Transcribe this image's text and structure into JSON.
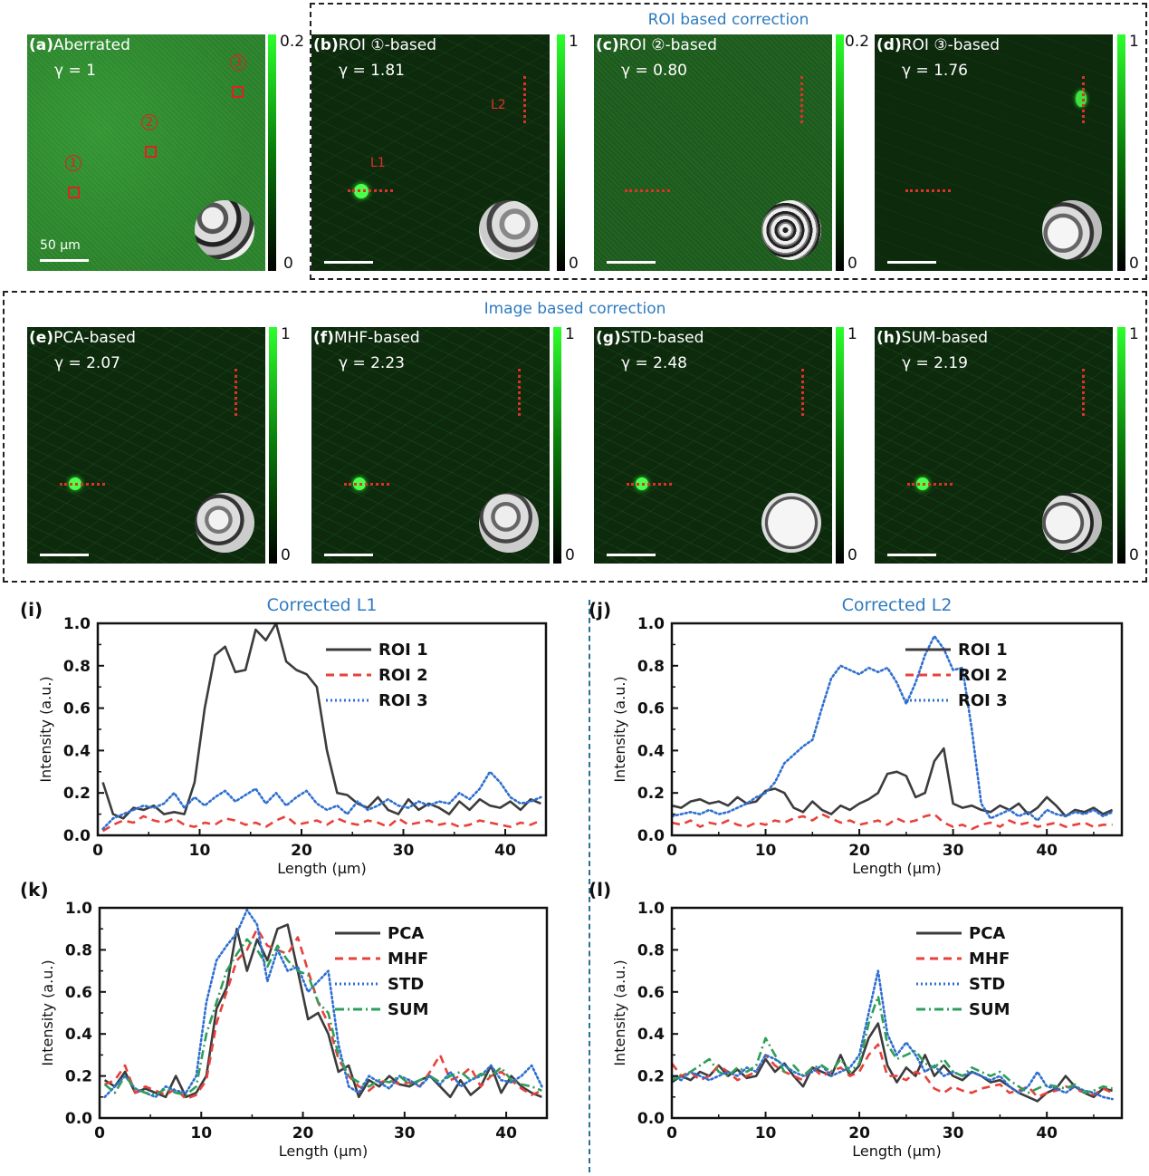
{
  "group_titles": {
    "roi": "ROI based correction",
    "image": "Image based correction"
  },
  "panels": {
    "a": {
      "letter": "(a)",
      "name": "Aberrated",
      "gamma": "γ = 1",
      "cmax": "0.2",
      "cmin": "0",
      "scale": "50 μm",
      "roi1": "1",
      "roi2": "2",
      "roi3": "3"
    },
    "b": {
      "letter": "(b)",
      "name": "ROI ①-based",
      "gamma": "γ = 1.81",
      "cmax": "1",
      "cmin": "0",
      "l1": "L1",
      "l2": "L2"
    },
    "c": {
      "letter": "(c)",
      "name": "ROI ②-based",
      "gamma": "γ = 0.80",
      "cmax": "0.2",
      "cmin": "0"
    },
    "d": {
      "letter": "(d)",
      "name": "ROI ③-based",
      "gamma": "γ = 1.76",
      "cmax": "1",
      "cmin": "0"
    },
    "e": {
      "letter": "(e)",
      "name": "PCA-based",
      "gamma": "γ =  2.07",
      "cmax": "1",
      "cmin": "0"
    },
    "f": {
      "letter": "(f)",
      "name": "MHF-based",
      "gamma": "γ = 2.23",
      "cmax": "1",
      "cmin": "0"
    },
    "g": {
      "letter": "(g)",
      "name": "STD-based",
      "gamma": "γ = 2.48",
      "cmax": "1",
      "cmin": "0"
    },
    "h": {
      "letter": "(h)",
      "name": "SUM-based",
      "gamma": "γ = 2.19",
      "cmax": "1",
      "cmin": "0"
    }
  },
  "colors": {
    "roi1": "#3c3c3c",
    "roi2": "#e8413b",
    "roi3": "#2f6fd0",
    "pca": "#3c3c3c",
    "mhf": "#e8413b",
    "std": "#2f6fd0",
    "sum": "#2e9e5a"
  },
  "chart_data": [
    {
      "id": "i",
      "letter": "(i)",
      "type": "line",
      "title": "Corrected L1",
      "xlabel": "Length (μm)",
      "ylabel": "Intensity  (a.u.)",
      "xlim": [
        0,
        44
      ],
      "ylim": [
        0,
        1.0
      ],
      "xticks": [
        0,
        10,
        20,
        30,
        40
      ],
      "yticks": [
        0.0,
        0.2,
        0.4,
        0.6,
        0.8,
        1.0
      ],
      "x": [
        0.5,
        1.5,
        2.5,
        3.5,
        4.5,
        5.5,
        6.5,
        7.5,
        8.5,
        9.5,
        10.5,
        11.5,
        12.5,
        13.5,
        14.5,
        15.5,
        16.5,
        17.5,
        18.5,
        19.5,
        20.5,
        21.5,
        22.5,
        23.5,
        24.5,
        25.5,
        26.5,
        27.5,
        28.5,
        29.5,
        30.5,
        31.5,
        32.5,
        33.5,
        34.5,
        35.5,
        36.5,
        37.5,
        38.5,
        39.5,
        40.5,
        41.5,
        42.5,
        43.5
      ],
      "series": [
        {
          "name": "ROI 1",
          "style": "solid",
          "values": [
            0.25,
            0.1,
            0.08,
            0.13,
            0.12,
            0.14,
            0.1,
            0.11,
            0.1,
            0.25,
            0.6,
            0.85,
            0.89,
            0.77,
            0.78,
            0.97,
            0.92,
            1.0,
            0.82,
            0.78,
            0.76,
            0.7,
            0.4,
            0.2,
            0.19,
            0.15,
            0.13,
            0.18,
            0.12,
            0.1,
            0.17,
            0.12,
            0.15,
            0.13,
            0.1,
            0.16,
            0.12,
            0.17,
            0.14,
            0.13,
            0.16,
            0.12,
            0.17,
            0.15
          ]
        },
        {
          "name": "ROI 2",
          "style": "dashed",
          "values": [
            0.02,
            0.05,
            0.07,
            0.06,
            0.09,
            0.07,
            0.06,
            0.08,
            0.05,
            0.04,
            0.06,
            0.05,
            0.08,
            0.07,
            0.05,
            0.06,
            0.04,
            0.07,
            0.09,
            0.05,
            0.06,
            0.07,
            0.05,
            0.08,
            0.06,
            0.05,
            0.07,
            0.06,
            0.04,
            0.08,
            0.05,
            0.06,
            0.07,
            0.05,
            0.06,
            0.04,
            0.05,
            0.07,
            0.06,
            0.05,
            0.04,
            0.06,
            0.05,
            0.07
          ]
        },
        {
          "name": "ROI 3",
          "style": "dotted",
          "values": [
            0.03,
            0.08,
            0.1,
            0.12,
            0.14,
            0.13,
            0.15,
            0.2,
            0.13,
            0.18,
            0.14,
            0.18,
            0.21,
            0.16,
            0.19,
            0.22,
            0.15,
            0.2,
            0.14,
            0.18,
            0.21,
            0.15,
            0.12,
            0.14,
            0.1,
            0.16,
            0.12,
            0.14,
            0.17,
            0.14,
            0.13,
            0.16,
            0.14,
            0.16,
            0.15,
            0.2,
            0.17,
            0.22,
            0.3,
            0.25,
            0.18,
            0.15,
            0.16,
            0.18
          ]
        }
      ]
    },
    {
      "id": "j",
      "letter": "(j)",
      "type": "line",
      "title": "Corrected L2",
      "xlabel": "Length (μm)",
      "ylabel": "Intensity  (a.u.)",
      "xlim": [
        0,
        48
      ],
      "ylim": [
        0,
        1.0
      ],
      "xticks": [
        0,
        10,
        20,
        30,
        40
      ],
      "yticks": [
        0.0,
        0.2,
        0.4,
        0.6,
        0.8,
        1.0
      ],
      "x": [
        0,
        1,
        2,
        3,
        4,
        5,
        6,
        7,
        8,
        9,
        10,
        11,
        12,
        13,
        14,
        15,
        16,
        17,
        18,
        19,
        20,
        21,
        22,
        23,
        24,
        25,
        26,
        27,
        28,
        29,
        30,
        31,
        32,
        33,
        34,
        35,
        36,
        37,
        38,
        39,
        40,
        41,
        42,
        43,
        44,
        45,
        46,
        47
      ],
      "series": [
        {
          "name": "ROI 1",
          "style": "solid",
          "values": [
            0.14,
            0.13,
            0.16,
            0.17,
            0.15,
            0.16,
            0.14,
            0.18,
            0.15,
            0.16,
            0.21,
            0.22,
            0.2,
            0.13,
            0.11,
            0.16,
            0.12,
            0.1,
            0.14,
            0.12,
            0.15,
            0.17,
            0.2,
            0.29,
            0.3,
            0.28,
            0.18,
            0.2,
            0.35,
            0.41,
            0.15,
            0.13,
            0.14,
            0.12,
            0.11,
            0.14,
            0.12,
            0.15,
            0.1,
            0.13,
            0.18,
            0.14,
            0.09,
            0.12,
            0.11,
            0.13,
            0.1,
            0.12
          ]
        },
        {
          "name": "ROI 2",
          "style": "dashed",
          "values": [
            0.06,
            0.05,
            0.07,
            0.04,
            0.06,
            0.05,
            0.07,
            0.05,
            0.04,
            0.06,
            0.05,
            0.07,
            0.06,
            0.08,
            0.09,
            0.07,
            0.1,
            0.08,
            0.06,
            0.07,
            0.05,
            0.06,
            0.07,
            0.05,
            0.08,
            0.06,
            0.07,
            0.09,
            0.1,
            0.06,
            0.04,
            0.05,
            0.03,
            0.05,
            0.06,
            0.04,
            0.07,
            0.05,
            0.06,
            0.04,
            0.05,
            0.06,
            0.04,
            0.05,
            0.06,
            0.04,
            0.05,
            0.05
          ]
        },
        {
          "name": "ROI 3",
          "style": "dotted",
          "values": [
            0.09,
            0.1,
            0.11,
            0.1,
            0.12,
            0.1,
            0.11,
            0.13,
            0.15,
            0.18,
            0.2,
            0.25,
            0.34,
            0.38,
            0.42,
            0.45,
            0.6,
            0.74,
            0.8,
            0.78,
            0.76,
            0.79,
            0.77,
            0.79,
            0.72,
            0.62,
            0.72,
            0.85,
            0.94,
            0.88,
            0.78,
            0.79,
            0.5,
            0.15,
            0.08,
            0.1,
            0.12,
            0.09,
            0.11,
            0.07,
            0.12,
            0.1,
            0.09,
            0.11,
            0.1,
            0.12,
            0.09,
            0.11
          ]
        }
      ]
    },
    {
      "id": "k",
      "letter": "(k)",
      "type": "line",
      "title": "",
      "xlabel": "Length (μm)",
      "ylabel": "Intensity  (a.u.)",
      "xlim": [
        0,
        44
      ],
      "ylim": [
        0,
        1.0
      ],
      "xticks": [
        0,
        10,
        20,
        30,
        40
      ],
      "yticks": [
        0.0,
        0.2,
        0.4,
        0.6,
        0.8,
        1.0
      ],
      "x": [
        0.5,
        1.5,
        2.5,
        3.5,
        4.5,
        5.5,
        6.5,
        7.5,
        8.5,
        9.5,
        10.5,
        11.5,
        12.5,
        13.5,
        14.5,
        15.5,
        16.5,
        17.5,
        18.5,
        19.5,
        20.5,
        21.5,
        22.5,
        23.5,
        24.5,
        25.5,
        26.5,
        27.5,
        28.5,
        29.5,
        30.5,
        31.5,
        32.5,
        33.5,
        34.5,
        35.5,
        36.5,
        37.5,
        38.5,
        39.5,
        40.5,
        41.5,
        42.5,
        43.5
      ],
      "series": [
        {
          "name": "PCA",
          "style": "solid",
          "values": [
            0.18,
            0.15,
            0.22,
            0.12,
            0.14,
            0.12,
            0.1,
            0.2,
            0.1,
            0.12,
            0.2,
            0.52,
            0.62,
            0.9,
            0.7,
            0.85,
            0.75,
            0.9,
            0.92,
            0.7,
            0.47,
            0.5,
            0.4,
            0.22,
            0.25,
            0.1,
            0.18,
            0.15,
            0.2,
            0.16,
            0.15,
            0.18,
            0.2,
            0.15,
            0.1,
            0.18,
            0.11,
            0.15,
            0.25,
            0.12,
            0.2,
            0.15,
            0.12,
            0.1
          ]
        },
        {
          "name": "MHF",
          "style": "dashed",
          "values": [
            0.16,
            0.18,
            0.25,
            0.12,
            0.15,
            0.13,
            0.11,
            0.14,
            0.09,
            0.11,
            0.18,
            0.45,
            0.6,
            0.75,
            0.8,
            0.9,
            0.82,
            0.8,
            0.78,
            0.86,
            0.7,
            0.55,
            0.45,
            0.28,
            0.2,
            0.15,
            0.13,
            0.17,
            0.18,
            0.16,
            0.17,
            0.15,
            0.22,
            0.3,
            0.18,
            0.2,
            0.24,
            0.15,
            0.2,
            0.22,
            0.18,
            0.14,
            0.11,
            0.13
          ]
        },
        {
          "name": "STD",
          "style": "dotted",
          "values": [
            0.1,
            0.15,
            0.2,
            0.14,
            0.12,
            0.1,
            0.15,
            0.13,
            0.12,
            0.2,
            0.55,
            0.75,
            0.82,
            0.88,
            0.99,
            0.92,
            0.65,
            0.8,
            0.7,
            0.72,
            0.6,
            0.65,
            0.7,
            0.35,
            0.15,
            0.12,
            0.2,
            0.17,
            0.14,
            0.2,
            0.18,
            0.15,
            0.2,
            0.16,
            0.22,
            0.15,
            0.18,
            0.2,
            0.25,
            0.18,
            0.17,
            0.2,
            0.25,
            0.15
          ]
        },
        {
          "name": "SUM",
          "style": "dashdot",
          "values": [
            0.16,
            0.12,
            0.2,
            0.14,
            0.12,
            0.11,
            0.14,
            0.12,
            0.11,
            0.15,
            0.4,
            0.55,
            0.7,
            0.78,
            0.85,
            0.8,
            0.72,
            0.82,
            0.75,
            0.7,
            0.68,
            0.55,
            0.5,
            0.3,
            0.2,
            0.17,
            0.15,
            0.18,
            0.17,
            0.2,
            0.16,
            0.18,
            0.2,
            0.17,
            0.2,
            0.22,
            0.18,
            0.21,
            0.2,
            0.24,
            0.18,
            0.16,
            0.15,
            0.13
          ]
        }
      ]
    },
    {
      "id": "l",
      "letter": "(l)",
      "type": "line",
      "title": "",
      "xlabel": "Length (μm)",
      "ylabel": "Intensity  (a.u.)",
      "xlim": [
        0,
        48
      ],
      "ylim": [
        0,
        1.0
      ],
      "xticks": [
        0,
        10,
        20,
        30,
        40
      ],
      "yticks": [
        0.0,
        0.2,
        0.4,
        0.6,
        0.8,
        1.0
      ],
      "x": [
        0,
        1,
        2,
        3,
        4,
        5,
        6,
        7,
        8,
        9,
        10,
        11,
        12,
        13,
        14,
        15,
        16,
        17,
        18,
        19,
        20,
        21,
        22,
        23,
        24,
        25,
        26,
        27,
        28,
        29,
        30,
        31,
        32,
        33,
        34,
        35,
        36,
        37,
        38,
        39,
        40,
        41,
        42,
        43,
        44,
        45,
        46,
        47
      ],
      "series": [
        {
          "name": "PCA",
          "style": "solid",
          "values": [
            0.17,
            0.2,
            0.18,
            0.22,
            0.2,
            0.25,
            0.2,
            0.23,
            0.19,
            0.2,
            0.28,
            0.22,
            0.26,
            0.2,
            0.15,
            0.24,
            0.22,
            0.2,
            0.3,
            0.2,
            0.25,
            0.38,
            0.45,
            0.25,
            0.17,
            0.24,
            0.2,
            0.3,
            0.2,
            0.25,
            0.2,
            0.18,
            0.22,
            0.2,
            0.17,
            0.18,
            0.15,
            0.12,
            0.1,
            0.08,
            0.12,
            0.14,
            0.2,
            0.15,
            0.12,
            0.1,
            0.14,
            0.13
          ]
        },
        {
          "name": "MHF",
          "style": "dashed",
          "values": [
            0.26,
            0.2,
            0.22,
            0.18,
            0.2,
            0.25,
            0.22,
            0.18,
            0.2,
            0.22,
            0.3,
            0.25,
            0.22,
            0.2,
            0.18,
            0.24,
            0.2,
            0.22,
            0.24,
            0.2,
            0.22,
            0.3,
            0.35,
            0.2,
            0.2,
            0.18,
            0.22,
            0.2,
            0.14,
            0.12,
            0.15,
            0.13,
            0.12,
            0.14,
            0.15,
            0.16,
            0.12,
            0.13,
            0.15,
            0.1,
            0.12,
            0.13,
            0.15,
            0.14,
            0.12,
            0.11,
            0.14,
            0.12
          ]
        },
        {
          "name": "STD",
          "style": "dotted",
          "values": [
            0.2,
            0.18,
            0.22,
            0.2,
            0.18,
            0.2,
            0.22,
            0.2,
            0.24,
            0.22,
            0.3,
            0.28,
            0.25,
            0.22,
            0.2,
            0.22,
            0.25,
            0.2,
            0.22,
            0.24,
            0.3,
            0.5,
            0.7,
            0.4,
            0.3,
            0.36,
            0.3,
            0.22,
            0.25,
            0.2,
            0.22,
            0.2,
            0.22,
            0.2,
            0.18,
            0.2,
            0.15,
            0.12,
            0.15,
            0.22,
            0.15,
            0.14,
            0.12,
            0.15,
            0.13,
            0.12,
            0.1,
            0.09
          ]
        },
        {
          "name": "SUM",
          "style": "dashdot",
          "values": [
            0.18,
            0.2,
            0.22,
            0.25,
            0.28,
            0.22,
            0.2,
            0.24,
            0.22,
            0.25,
            0.38,
            0.3,
            0.22,
            0.25,
            0.2,
            0.24,
            0.25,
            0.22,
            0.28,
            0.22,
            0.26,
            0.45,
            0.58,
            0.35,
            0.28,
            0.3,
            0.32,
            0.26,
            0.24,
            0.28,
            0.22,
            0.2,
            0.24,
            0.22,
            0.2,
            0.22,
            0.18,
            0.15,
            0.12,
            0.14,
            0.16,
            0.15,
            0.14,
            0.16,
            0.12,
            0.13,
            0.15,
            0.14
          ]
        }
      ]
    }
  ]
}
